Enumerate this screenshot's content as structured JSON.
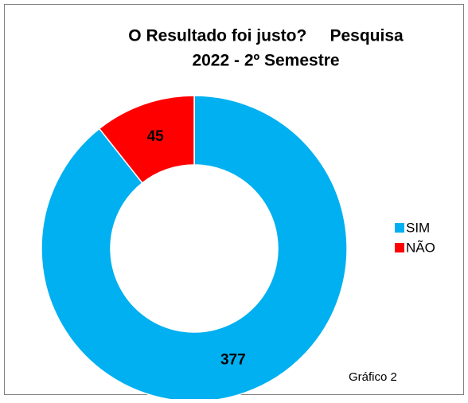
{
  "chart_data": {
    "type": "donut",
    "title": [
      "O Resultado foi justo?     Pesquisa",
      "2022 - 2º Semestre"
    ],
    "categories": [
      "SIM",
      "NÃO"
    ],
    "values": [
      377,
      45
    ],
    "colors": [
      "#00b0f0",
      "#ff0000"
    ],
    "legend": "right",
    "annotation": "Gráfico 2"
  }
}
